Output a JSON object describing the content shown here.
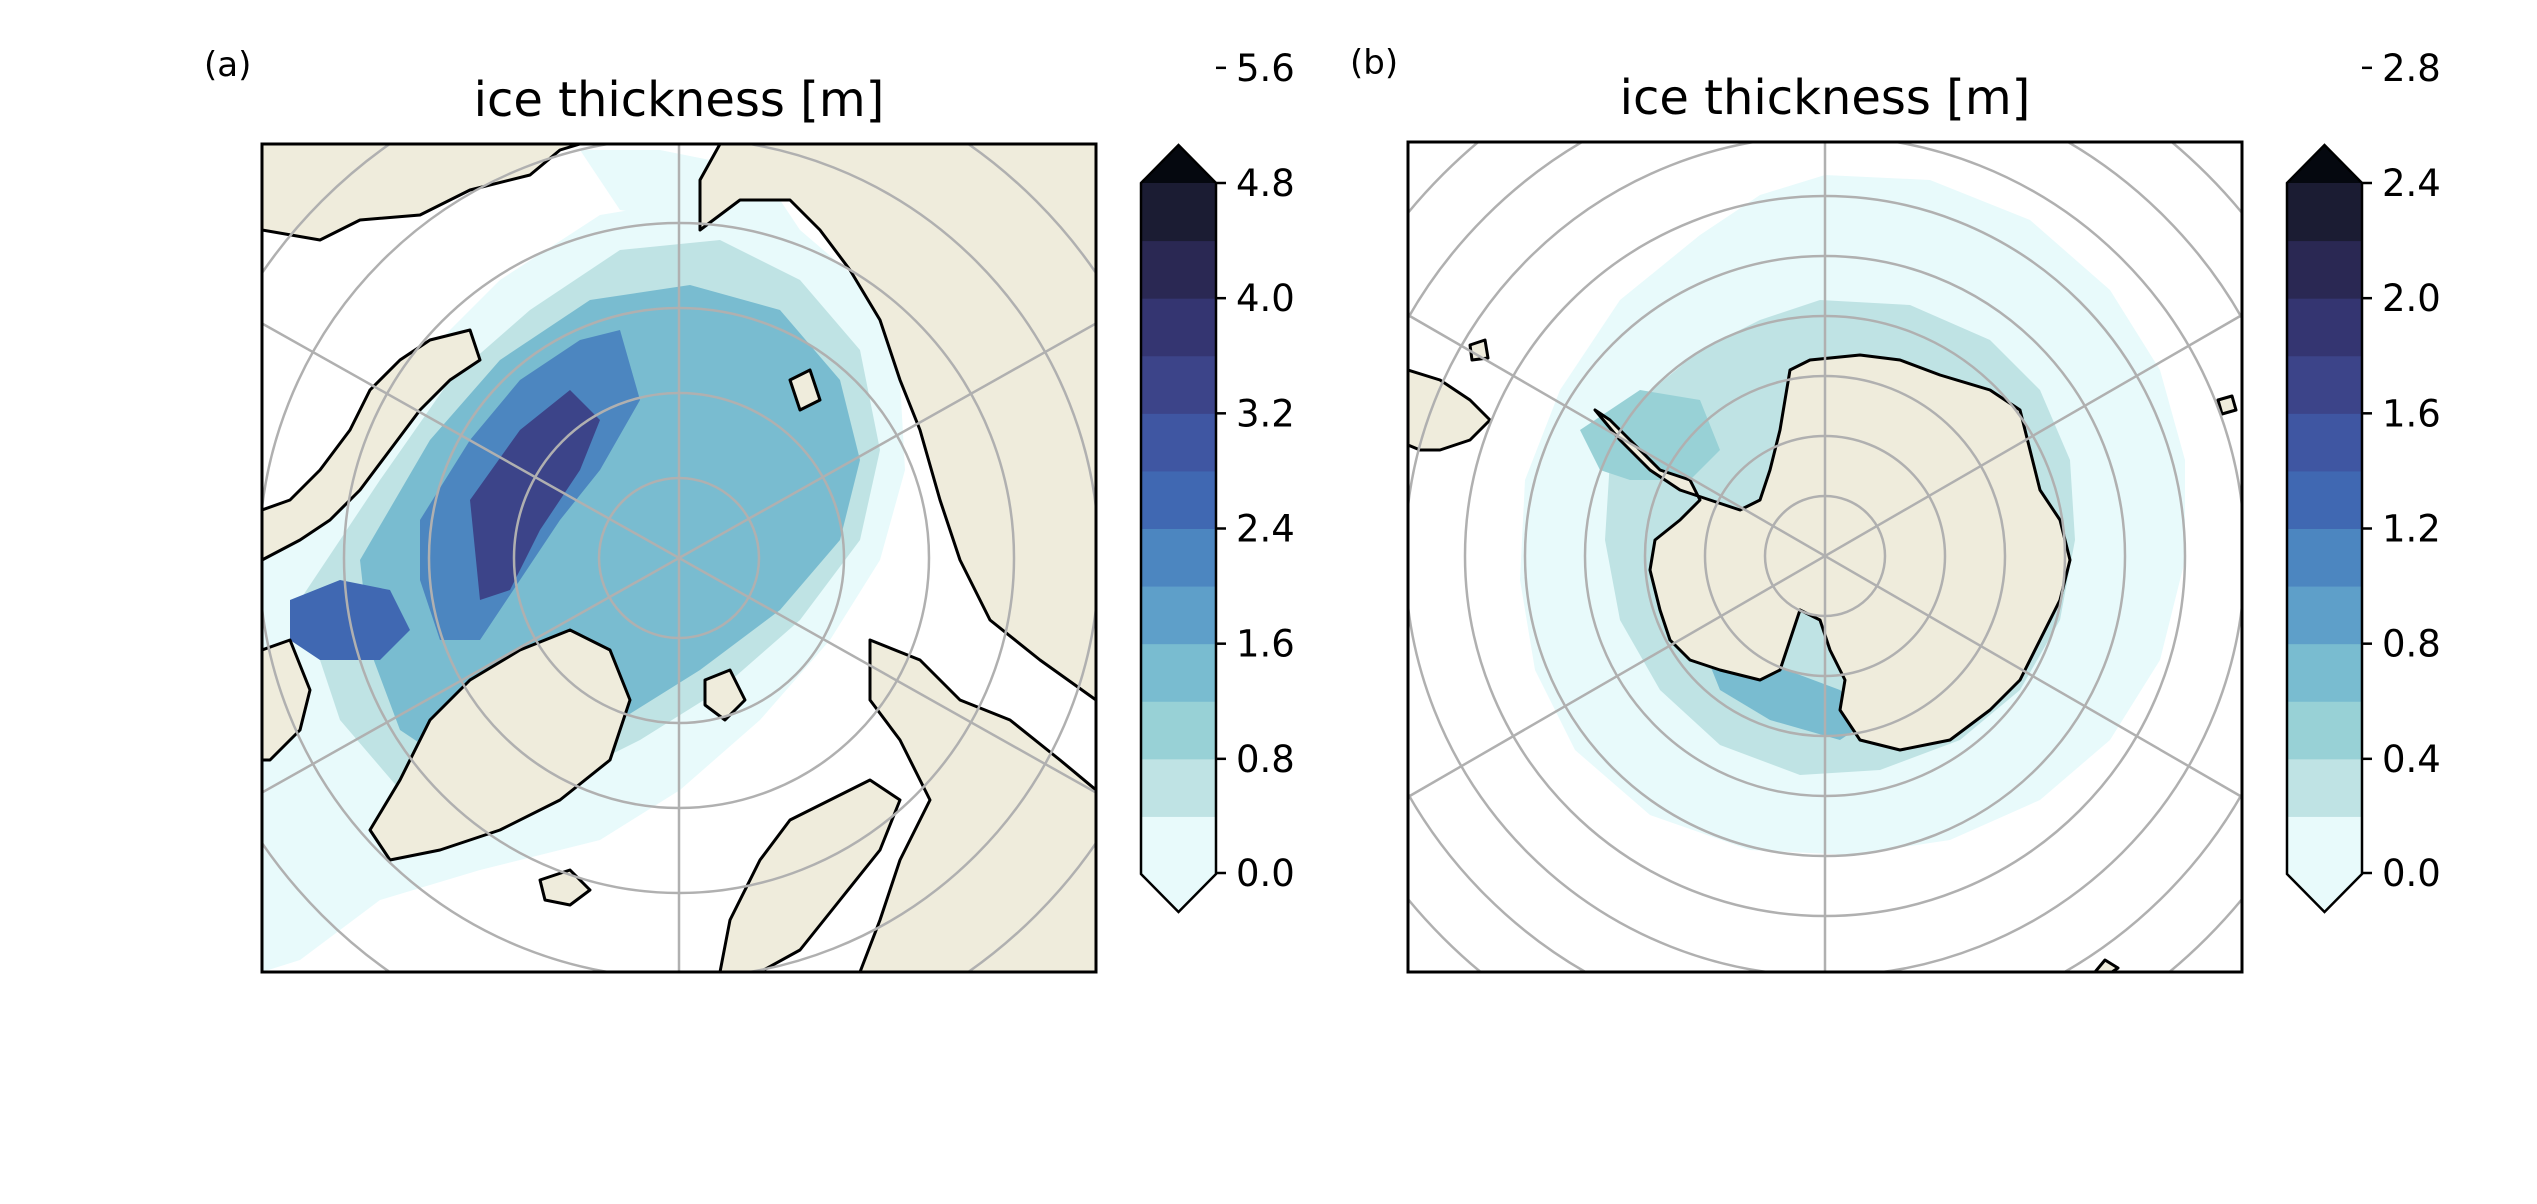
{
  "panels": [
    {
      "letter": "(a)",
      "title": "ice thickness [m]",
      "hemisphere": "north",
      "colorbar": {
        "ticks": [
          "0.0",
          "0.8",
          "1.6",
          "2.4",
          "3.2",
          "4.0",
          "4.8",
          "5.6"
        ],
        "levels": [
          0.0,
          0.4,
          0.8,
          1.2,
          1.6,
          2.0,
          2.4,
          2.8,
          3.2,
          3.6,
          4.0,
          4.4,
          4.8,
          5.2,
          5.6
        ],
        "extend": "both"
      }
    },
    {
      "letter": "(b)",
      "title": "ice thickness [m]",
      "hemisphere": "south",
      "colorbar": {
        "ticks": [
          "0.0",
          "0.4",
          "0.8",
          "1.2",
          "1.6",
          "2.0",
          "2.4",
          "2.8"
        ],
        "levels": [
          0.0,
          0.2,
          0.4,
          0.6,
          0.8,
          1.0,
          1.2,
          1.4,
          1.6,
          1.8,
          2.0,
          2.2,
          2.4,
          2.6,
          2.8
        ],
        "extend": "both"
      }
    }
  ],
  "colors": {
    "land": "#efecdc",
    "grid": "#b0b0b0",
    "coast": "#000000",
    "cmap": [
      "#e8fafb",
      "#bfe3e4",
      "#98d1d6",
      "#79bcd0",
      "#5e9fc9",
      "#4c86c0",
      "#4068b2",
      "#3f56a2",
      "#3c4489",
      "#343571",
      "#2a2853",
      "#1b1c33",
      "#05080f"
    ]
  }
}
